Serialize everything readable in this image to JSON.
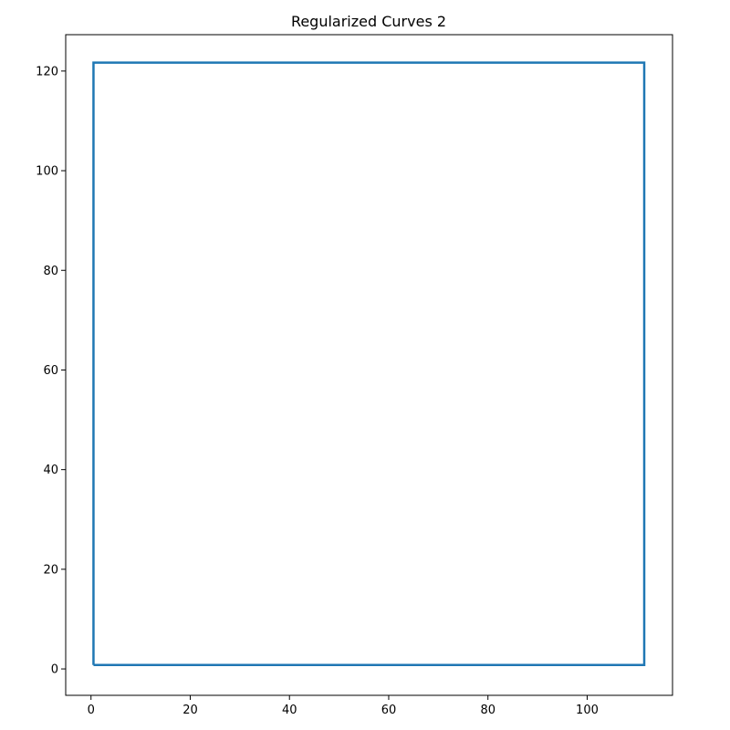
{
  "chart_data": {
    "type": "line",
    "title": "Regularized Curves 2",
    "xlabel": "",
    "ylabel": "",
    "xlim": [
      -5.1,
      117.2
    ],
    "ylim": [
      -5.3,
      127.3
    ],
    "xticks": [
      0,
      20,
      40,
      60,
      80,
      100
    ],
    "yticks": [
      0,
      20,
      40,
      60,
      80,
      100,
      120
    ],
    "grid": false,
    "legend": "none",
    "series": [
      {
        "color": "#1f77b4",
        "x": [
          0.5,
          111.5,
          111.5,
          0.5,
          0.5
        ],
        "y": [
          0.8,
          0.8,
          121.7,
          121.7,
          0.8
        ]
      }
    ]
  }
}
